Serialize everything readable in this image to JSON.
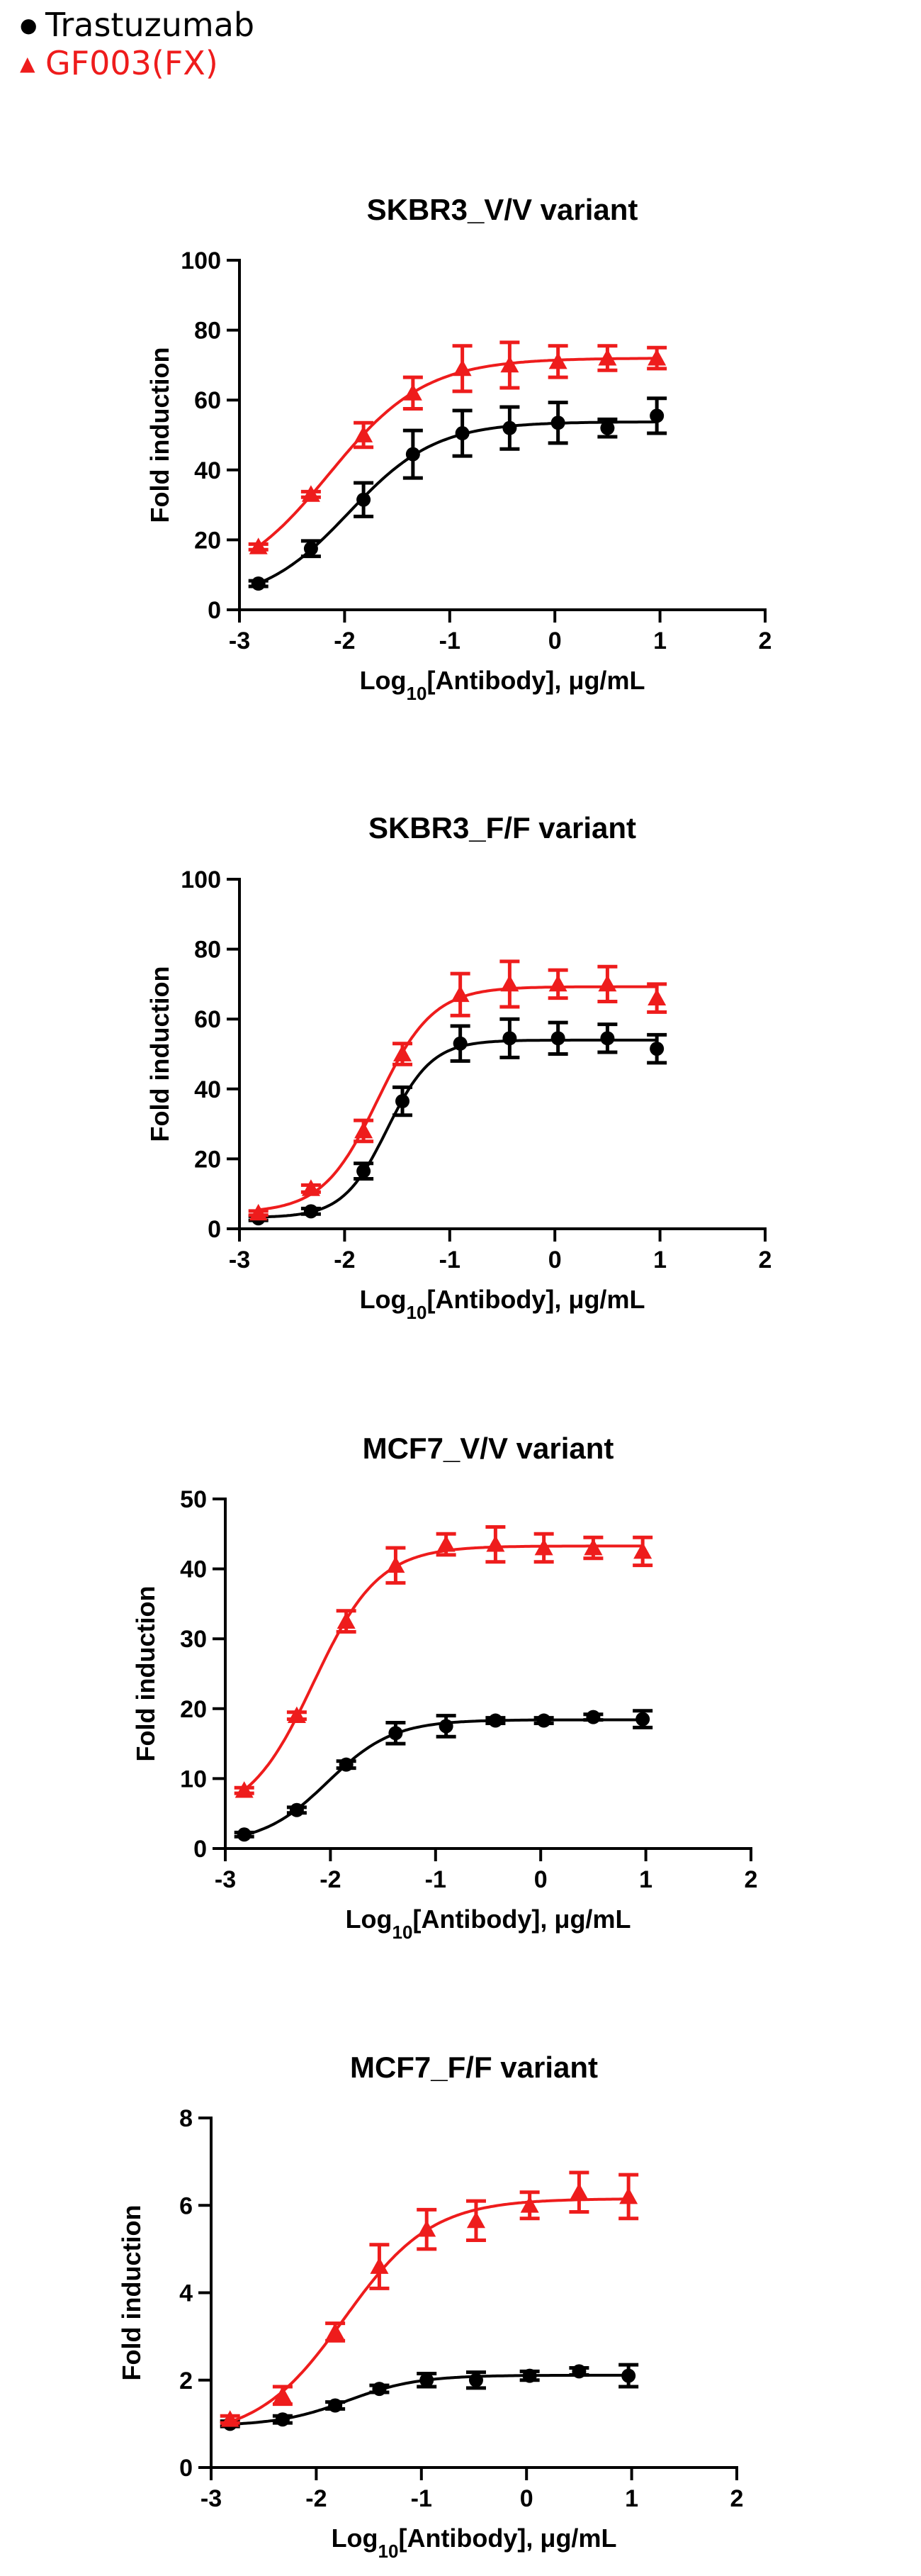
{
  "legend": {
    "items": [
      {
        "name": "Trastuzumab",
        "color": "#000000",
        "marker": "circle"
      },
      {
        "name": "GF003(FX)",
        "color": "#ee1c1c",
        "marker": "triangle"
      }
    ]
  },
  "chart_data": [
    {
      "type": "scatter",
      "title": "SKBR3_V/V variant",
      "xlabel": "Log10[Antibody], μg/mL",
      "ylabel": "Fold induction",
      "xlim": [
        -3,
        2
      ],
      "ylim": [
        0,
        100
      ],
      "xticks": [
        -3,
        -2,
        -1,
        0,
        1,
        2
      ],
      "yticks": [
        0,
        20,
        40,
        60,
        80,
        100
      ],
      "x": [
        -2.82,
        -2.32,
        -1.82,
        -1.35,
        -0.88,
        -0.43,
        0.03,
        0.5,
        0.97
      ],
      "series": [
        {
          "name": "Trastuzumab",
          "values": [
            7.5,
            17.5,
            31.5,
            44.5,
            50.5,
            52,
            53.5,
            52,
            55.5
          ],
          "errors": [
            0.8,
            2.2,
            4.8,
            6.8,
            6.5,
            6,
            5.8,
            2.5,
            5
          ]
        },
        {
          "name": "GF003(FX)",
          "values": [
            18,
            33,
            50,
            62,
            69,
            70,
            71,
            72,
            72
          ],
          "errors": [
            0.8,
            0.8,
            3.5,
            4.5,
            6.5,
            6.5,
            4.5,
            3.5,
            3
          ]
        }
      ]
    },
    {
      "type": "scatter",
      "title": "SKBR3_F/F variant",
      "xlabel": "Log10[Antibody], μg/mL",
      "ylabel": "Fold induction",
      "xlim": [
        -3,
        2
      ],
      "ylim": [
        0,
        100
      ],
      "xticks": [
        -3,
        -2,
        -1,
        0,
        1,
        2
      ],
      "yticks": [
        0,
        20,
        40,
        60,
        80,
        100
      ],
      "x": [
        -2.82,
        -2.32,
        -1.82,
        -1.45,
        -0.9,
        -0.43,
        0.03,
        0.5,
        0.97
      ],
      "series": [
        {
          "name": "Trastuzumab",
          "values": [
            3,
            5,
            16.5,
            36.5,
            53,
            54.5,
            54.5,
            54.5,
            51.5
          ],
          "errors": [
            0.6,
            0.8,
            2.2,
            4,
            5,
            5.5,
            4.5,
            4,
            4
          ]
        },
        {
          "name": "GF003(FX)",
          "values": [
            4.5,
            11.5,
            28,
            50,
            67,
            70,
            70,
            70,
            66
          ],
          "errors": [
            0.6,
            1,
            3,
            3,
            6,
            6.5,
            4,
            5,
            4
          ]
        }
      ]
    },
    {
      "type": "scatter",
      "title": "MCF7_V/V variant",
      "xlabel": "Log10[Antibody], μg/mL",
      "ylabel": "Fold induction",
      "xlim": [
        -3,
        2
      ],
      "ylim": [
        0,
        50
      ],
      "xticks": [
        -3,
        -2,
        -1,
        0,
        1,
        2
      ],
      "yticks": [
        0,
        10,
        20,
        30,
        40,
        50
      ],
      "x": [
        -2.82,
        -2.32,
        -1.85,
        -1.38,
        -0.9,
        -0.43,
        0.03,
        0.5,
        0.97
      ],
      "series": [
        {
          "name": "Trastuzumab",
          "values": [
            2,
            5.5,
            12,
            16.5,
            17.5,
            18.3,
            18.3,
            18.8,
            18.5
          ],
          "errors": [
            0.3,
            0.4,
            0.5,
            1.5,
            1.5,
            0.4,
            0.4,
            0.4,
            1.2
          ]
        },
        {
          "name": "GF003(FX)",
          "values": [
            8.3,
            19,
            32.5,
            40.5,
            43.5,
            43.5,
            43,
            43,
            42.5
          ],
          "errors": [
            0.4,
            0.5,
            1.5,
            2.5,
            1.5,
            2.5,
            2,
            1.5,
            2
          ]
        }
      ]
    },
    {
      "type": "scatter",
      "title": "MCF7_F/F variant",
      "xlabel": "Log10[Antibody], μg/mL",
      "ylabel": "Fold induction",
      "xlim": [
        -3,
        2
      ],
      "ylim": [
        0,
        8
      ],
      "xticks": [
        -3,
        -2,
        -1,
        0,
        1,
        2
      ],
      "yticks": [
        0,
        2,
        4,
        6,
        8
      ],
      "x": [
        -2.82,
        -2.32,
        -1.82,
        -1.4,
        -0.95,
        -0.48,
        0.03,
        0.5,
        0.97
      ],
      "series": [
        {
          "name": "Trastuzumab",
          "values": [
            1,
            1.1,
            1.42,
            1.8,
            2,
            2,
            2.1,
            2.2,
            2.1
          ],
          "errors": [
            0.06,
            0.08,
            0.08,
            0.08,
            0.15,
            0.18,
            0.1,
            0.08,
            0.25
          ]
        },
        {
          "name": "GF003(FX)",
          "values": [
            1.1,
            1.65,
            3.1,
            4.6,
            5.45,
            5.65,
            6,
            6.3,
            6.2
          ],
          "errors": [
            0.08,
            0.2,
            0.2,
            0.5,
            0.45,
            0.45,
            0.3,
            0.45,
            0.5
          ]
        }
      ]
    }
  ]
}
